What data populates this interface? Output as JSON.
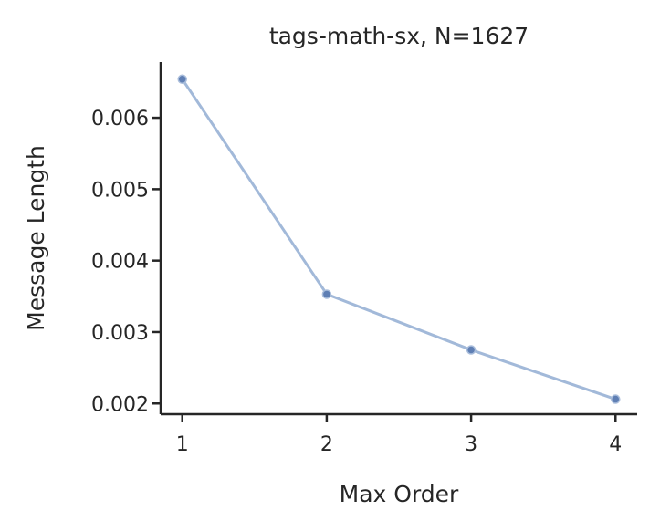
{
  "chart_data": {
    "type": "line",
    "title": "tags-math-sx, N=1627",
    "xlabel": "Max Order",
    "ylabel": "Message Length",
    "x": [
      1,
      2,
      3,
      4
    ],
    "xticks": [
      "1",
      "2",
      "3",
      "4"
    ],
    "yticks": [
      "0.002",
      "0.003",
      "0.004",
      "0.005",
      "0.006"
    ],
    "ytick_values": [
      0.002,
      0.003,
      0.004,
      0.005,
      0.006
    ],
    "xlim": [
      0.85,
      4.15
    ],
    "ylim": [
      0.00185,
      0.00678
    ],
    "grid": false,
    "series": [
      {
        "values": [
          0.00654,
          0.00353,
          0.00275,
          0.00206
        ],
        "color": "#7b9bc9"
      }
    ]
  }
}
